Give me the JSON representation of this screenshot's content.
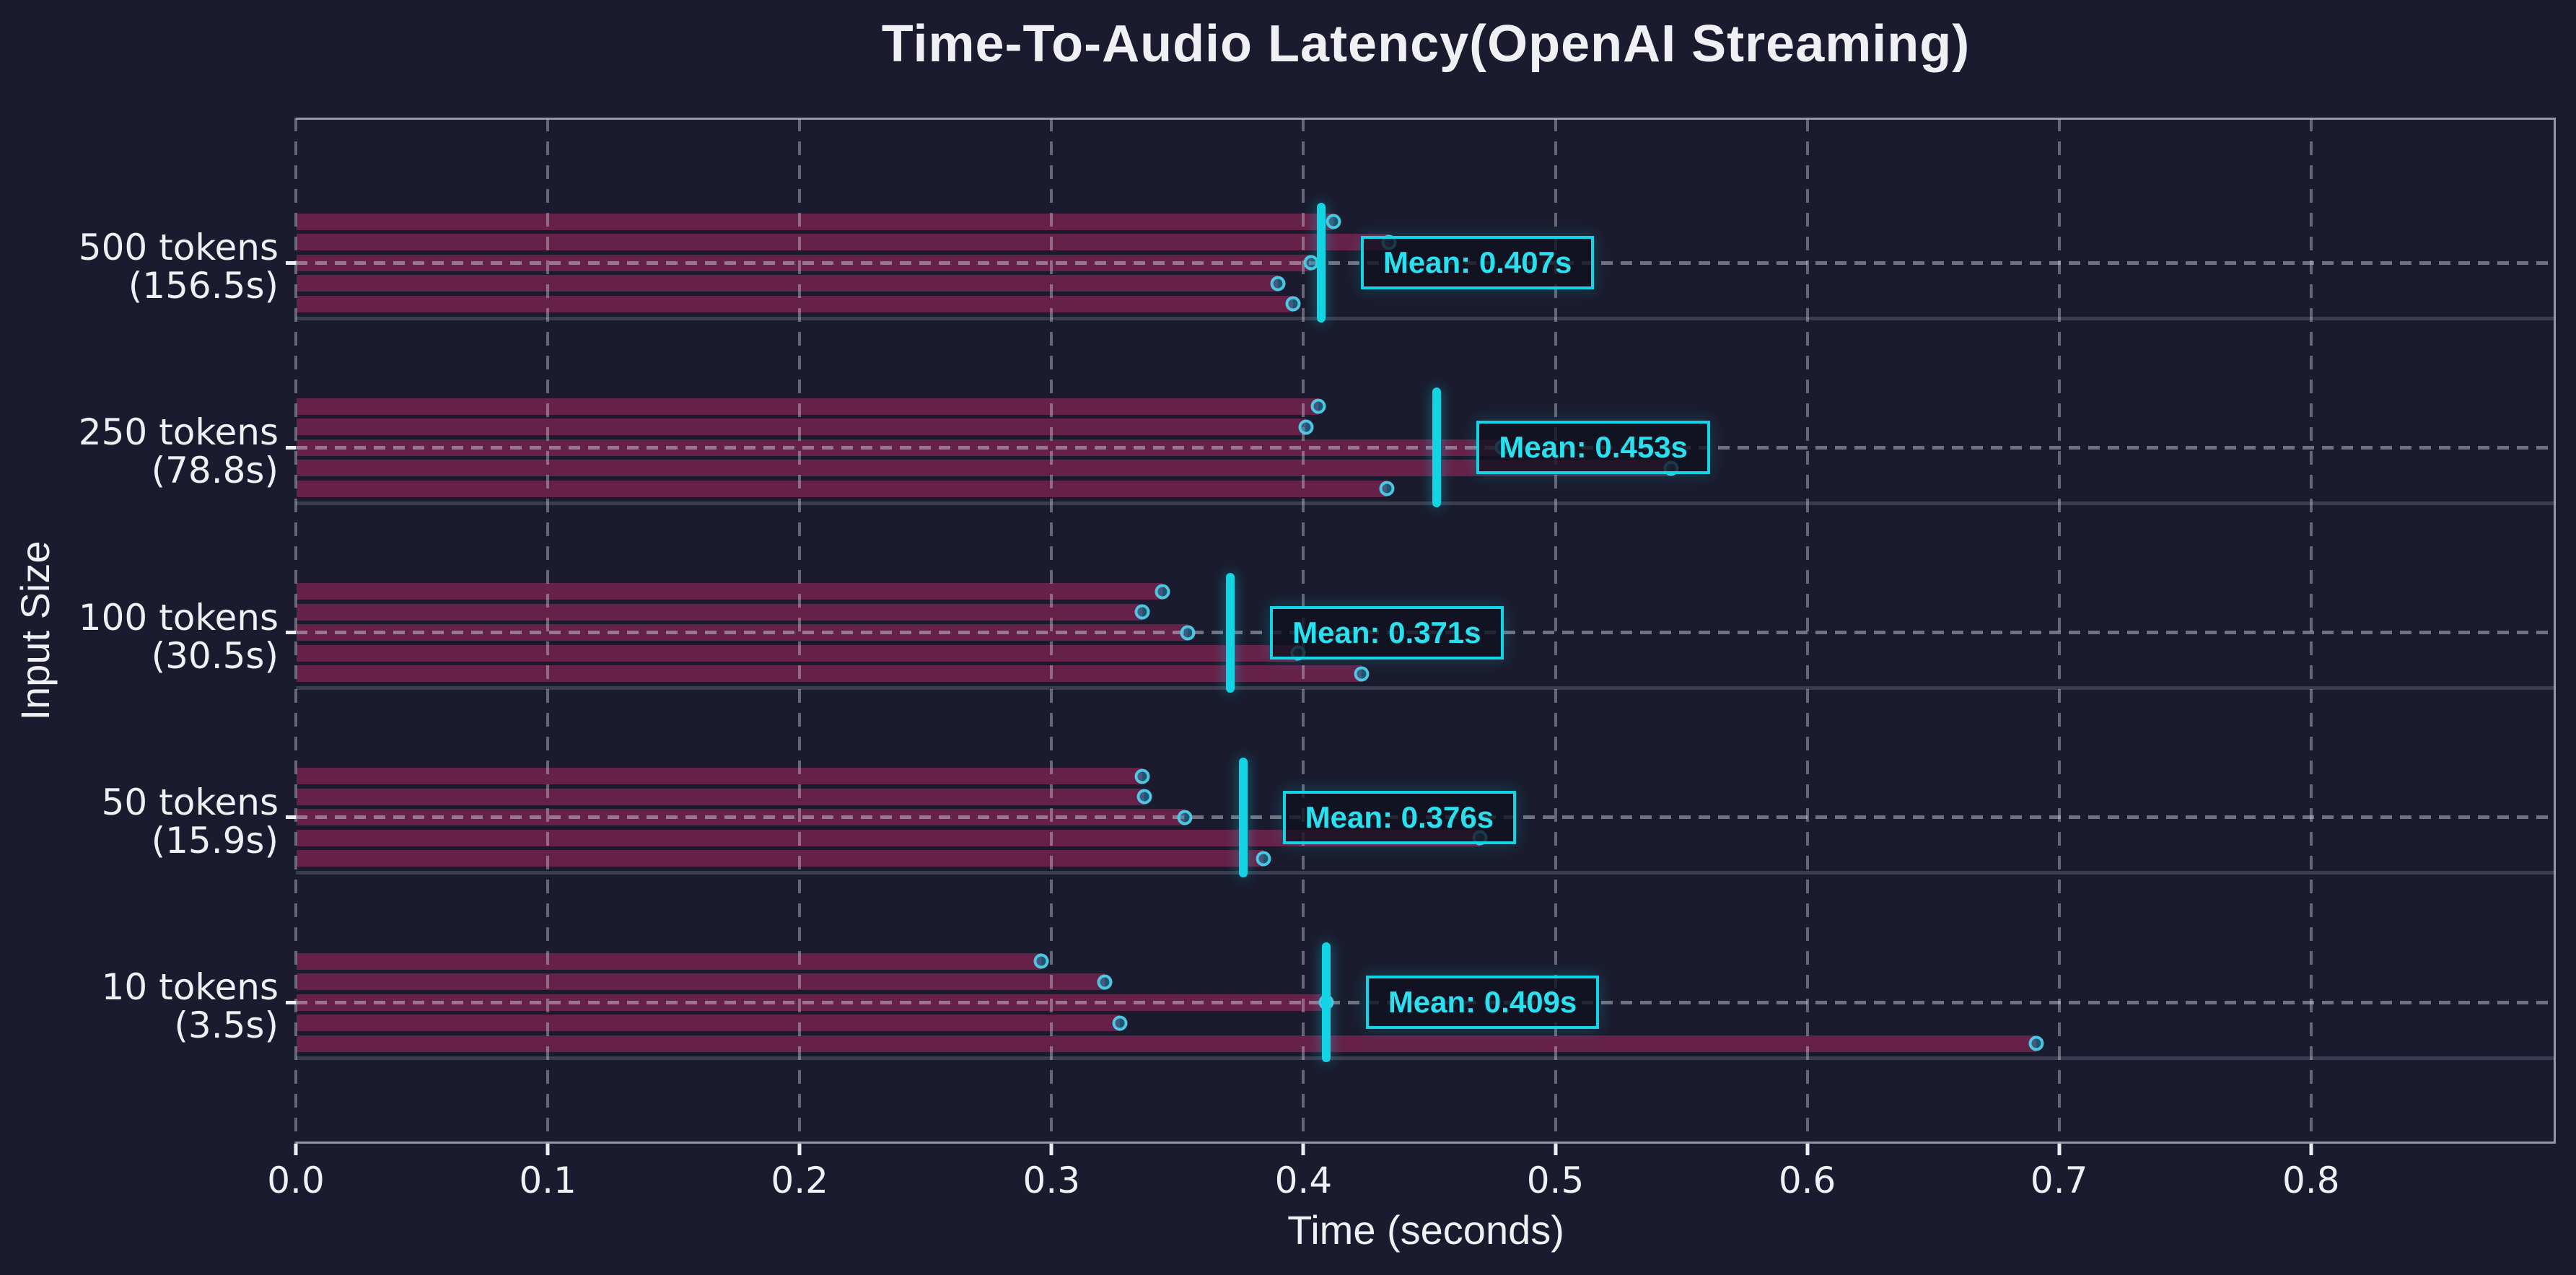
{
  "title": "Time-To-Audio Latency(OpenAI Streaming)",
  "colors": {
    "background": "#1a1b2e",
    "bar": "#662148",
    "accent": "#12d4e4",
    "mean_text": "#2ae0ee",
    "text": "#f0f0f4"
  },
  "chart_data": {
    "type": "bar",
    "orientation": "horizontal",
    "title": "Time-To-Audio Latency(OpenAI Streaming)",
    "xlabel": "Time (seconds)",
    "ylabel": "Input Size",
    "xlim": [
      0,
      0.897
    ],
    "xticks": [
      "0.0",
      "0.1",
      "0.2",
      "0.3",
      "0.4",
      "0.5",
      "0.6",
      "0.7",
      "0.8"
    ],
    "xtick_values": [
      0,
      0.1,
      0.2,
      0.3,
      0.4,
      0.5,
      0.6,
      0.7,
      0.8
    ],
    "grid": true,
    "legend": false,
    "unit": "seconds",
    "groups": [
      {
        "label": "500 tokens",
        "sublabel": "(156.5s)",
        "runs": [
          0.412,
          0.434,
          0.403,
          0.39,
          0.396
        ],
        "mean": 0.407,
        "mean_label": "Mean: 0.407s"
      },
      {
        "label": "250 tokens",
        "sublabel": "(78.8s)",
        "runs": [
          0.406,
          0.401,
          0.479,
          0.546,
          0.433
        ],
        "mean": 0.453,
        "mean_label": "Mean: 0.453s"
      },
      {
        "label": "100 tokens",
        "sublabel": "(30.5s)",
        "runs": [
          0.344,
          0.336,
          0.354,
          0.398,
          0.423
        ],
        "mean": 0.371,
        "mean_label": "Mean: 0.371s"
      },
      {
        "label": "50 tokens",
        "sublabel": "(15.9s)",
        "runs": [
          0.336,
          0.337,
          0.353,
          0.47,
          0.384
        ],
        "mean": 0.376,
        "mean_label": "Mean: 0.376s"
      },
      {
        "label": "10 tokens",
        "sublabel": "(3.5s)",
        "runs": [
          0.296,
          0.321,
          0.409,
          0.327,
          0.691
        ],
        "mean": 0.409,
        "mean_label": "Mean: 0.409s"
      }
    ]
  }
}
